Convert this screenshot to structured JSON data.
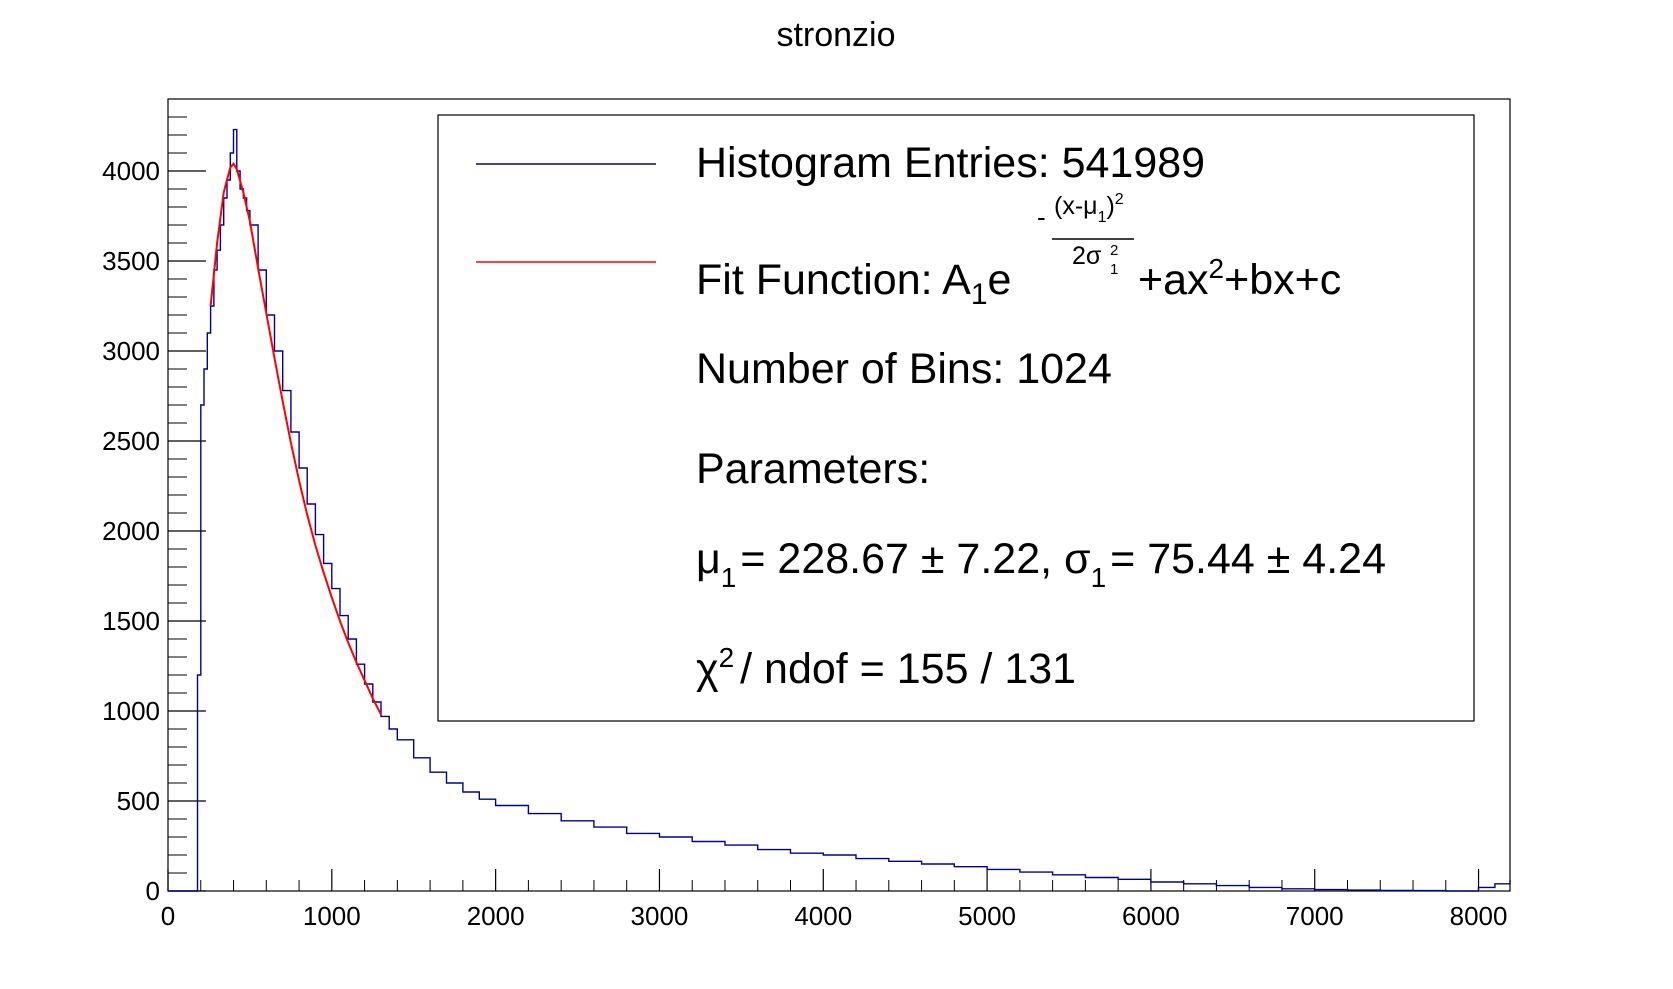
{
  "chart_data": {
    "type": "line",
    "title": "stronzio",
    "xlabel": "",
    "ylabel": "",
    "xlim": [
      0,
      8192
    ],
    "ylim": [
      0,
      4400
    ],
    "grid": false,
    "legend_position": "top-right",
    "x_ticks": [
      0,
      1000,
      2000,
      3000,
      4000,
      5000,
      6000,
      7000,
      8000
    ],
    "x_tick_labels": [
      "0",
      "1000",
      "2000",
      "3000",
      "4000",
      "5000",
      "6000",
      "7000",
      "8000"
    ],
    "y_ticks": [
      0,
      500,
      1000,
      1500,
      2000,
      2500,
      3000,
      3500,
      4000
    ],
    "y_tick_labels": [
      "0",
      "500",
      "1000",
      "1500",
      "2000",
      "2500",
      "3000",
      "3500",
      "4000"
    ],
    "series": [
      {
        "name": "Histogram Entries: 541989",
        "color": "#000099",
        "kind": "histogram",
        "x": [
          0,
          100,
          160,
          180,
          200,
          220,
          240,
          260,
          280,
          300,
          320,
          340,
          360,
          380,
          400,
          420,
          440,
          460,
          480,
          500,
          550,
          600,
          650,
          700,
          750,
          800,
          850,
          900,
          950,
          1000,
          1050,
          1100,
          1150,
          1200,
          1250,
          1300,
          1350,
          1400,
          1500,
          1600,
          1700,
          1800,
          1900,
          2000,
          2200,
          2400,
          2600,
          2800,
          3000,
          3200,
          3400,
          3600,
          3800,
          4000,
          4200,
          4400,
          4600,
          4800,
          5000,
          5200,
          5400,
          5600,
          5800,
          6000,
          6200,
          6400,
          6600,
          6800,
          7000,
          7200,
          7400,
          7600,
          7800,
          7900,
          8000,
          8100,
          8192
        ],
        "y": [
          0,
          0,
          0,
          1200,
          2700,
          2900,
          3100,
          3250,
          3450,
          3560,
          3700,
          3850,
          3950,
          4100,
          4230,
          4000,
          3900,
          3850,
          3780,
          3700,
          3450,
          3200,
          3000,
          2780,
          2550,
          2350,
          2150,
          1980,
          1820,
          1680,
          1530,
          1400,
          1260,
          1150,
          1050,
          970,
          900,
          840,
          740,
          660,
          600,
          550,
          510,
          475,
          430,
          390,
          355,
          320,
          300,
          275,
          255,
          230,
          210,
          200,
          180,
          165,
          150,
          135,
          120,
          105,
          90,
          75,
          65,
          50,
          40,
          30,
          20,
          12,
          8,
          5,
          3,
          2,
          0,
          0,
          20,
          40,
          60
        ]
      },
      {
        "name": "Fit Function: A1e^(-(x-μ1)²/(2σ1²)) +ax²+bx+c",
        "color": "#ff0000",
        "kind": "fit",
        "x": [
          260,
          300,
          340,
          380,
          400,
          420,
          460,
          500,
          550,
          600,
          650,
          700,
          750,
          800,
          850,
          900,
          950,
          1000,
          1050,
          1100,
          1150,
          1200,
          1250,
          1300
        ],
        "y": [
          3250,
          3600,
          3880,
          4020,
          4040,
          4010,
          3880,
          3720,
          3460,
          3210,
          2960,
          2720,
          2490,
          2280,
          2090,
          1920,
          1770,
          1630,
          1500,
          1380,
          1270,
          1170,
          1070,
          980
        ]
      }
    ]
  },
  "legend": {
    "entries_label": "Histogram Entries: 541989",
    "fit_prefix": "Fit Function: A",
    "fit_a_sub": "1",
    "fit_e": "e",
    "fit_exp_minus": "-",
    "fit_exp_num": "(x-μ",
    "fit_exp_num_sub": "1",
    "fit_exp_num_close": ")",
    "fit_exp_num_sup": "2",
    "fit_exp_den": "2σ",
    "fit_exp_den_sup": "2",
    "fit_exp_den_sub": "1",
    "fit_tail": "+ax",
    "fit_tail_sup": "2",
    "fit_tail_rest": "+bx+c",
    "bins_label": "Number of Bins: 1024",
    "params_label": "Parameters:",
    "mu_symbol": "μ",
    "mu_sub": "1",
    "mu_value": "= 228.67 ± 7.22, σ",
    "sigma_sub": "1",
    "sigma_value": "= 75.44 ± 4.24",
    "chi_symbol": "χ",
    "chi_sup": "2",
    "chi_value": "/ ndof = 155 / 131"
  }
}
